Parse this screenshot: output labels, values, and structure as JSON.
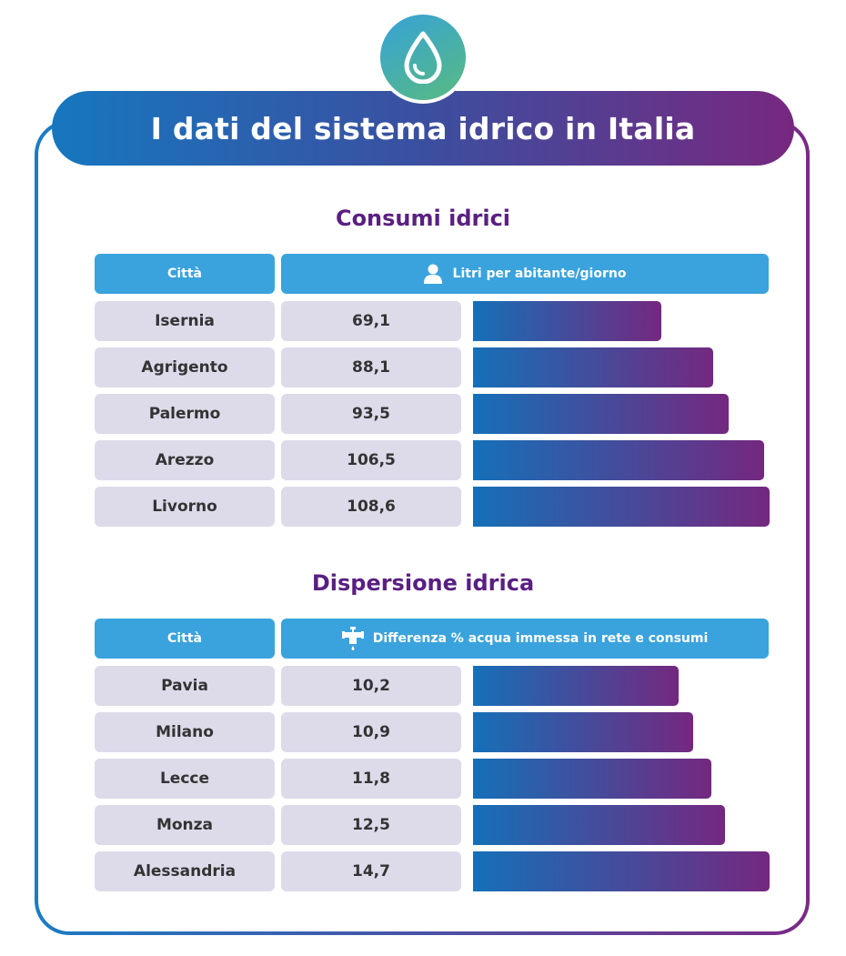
{
  "title": "I dati del sistema idrico in Italia",
  "icons": {
    "top": "water-drop-icon",
    "section1_header": "user-icon",
    "section2_header": "faucet-icon"
  },
  "colors": {
    "accent_blue": "#3aa3dd",
    "title_purple": "#5a1f82",
    "cell_bg": "#dddbea",
    "bar_start": "#1570b8",
    "bar_end": "#74287f"
  },
  "sections": [
    {
      "title": "Consumi idrici",
      "col1": "Città",
      "col2": "Litri per abitante/giorno"
    },
    {
      "title": "Dispersione idrica",
      "col1": "Città",
      "col2": "Differenza % acqua immessa in rete e consumi"
    }
  ],
  "chart_data": [
    {
      "type": "bar",
      "orientation": "horizontal",
      "title": "Consumi idrici",
      "xlabel": "Città",
      "ylabel": "Litri per abitante/giorno",
      "categories": [
        "Isernia",
        "Agrigento",
        "Palermo",
        "Arezzo",
        "Livorno"
      ],
      "values": [
        69.1,
        88.1,
        93.5,
        106.5,
        108.6
      ],
      "value_labels": [
        "69,1",
        "88,1",
        "93,5",
        "106,5",
        "108,6"
      ],
      "xlim": [
        0,
        108.6
      ]
    },
    {
      "type": "bar",
      "orientation": "horizontal",
      "title": "Dispersione idrica",
      "xlabel": "Città",
      "ylabel": "Differenza % acqua immessa in rete e consumi",
      "categories": [
        "Pavia",
        "Milano",
        "Lecce",
        "Monza",
        "Alessandria"
      ],
      "values": [
        10.2,
        10.9,
        11.8,
        12.5,
        14.7
      ],
      "value_labels": [
        "10,2",
        "10,9",
        "11,8",
        "12,5",
        "14,7"
      ],
      "xlim": [
        0,
        14.7
      ]
    }
  ]
}
